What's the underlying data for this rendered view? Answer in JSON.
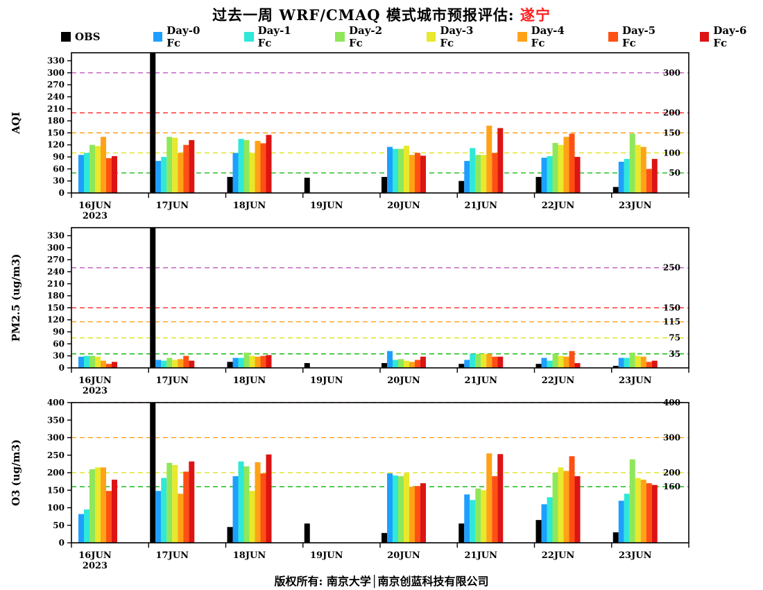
{
  "title": {
    "main": "过去一周 WRF/CMAQ 模式城市预报评估:",
    "city": " 遂宁"
  },
  "legend": {
    "items": [
      {
        "label": "OBS",
        "color": "#000000"
      },
      {
        "label": "Day-0 Fc",
        "color": "#1e9fff"
      },
      {
        "label": "Day-1 Fc",
        "color": "#2ee8d8"
      },
      {
        "label": "Day-2 Fc",
        "color": "#8fe75a"
      },
      {
        "label": "Day-3 Fc",
        "color": "#e8e82c"
      },
      {
        "label": "Day-4 Fc",
        "color": "#ffa217"
      },
      {
        "label": "Day-5 Fc",
        "color": "#ff5014"
      },
      {
        "label": "Day-6 Fc",
        "color": "#dc1414"
      }
    ]
  },
  "footer": {
    "text": "版权所有: 南京大学│南京创蓝科技有限公司"
  },
  "chart_data": [
    {
      "type": "bar",
      "ylabel": "AQI",
      "ylim": [
        0,
        350
      ],
      "yticks": [
        0,
        30,
        60,
        90,
        120,
        150,
        180,
        210,
        240,
        270,
        300,
        330
      ],
      "categories": [
        [
          "16JUN",
          "2023"
        ],
        [
          "17JUN"
        ],
        [
          "18JUN"
        ],
        [
          "19JUN"
        ],
        [
          "20JUN"
        ],
        [
          "21JUN"
        ],
        [
          "22JUN"
        ],
        [
          "23JUN"
        ]
      ],
      "series": [
        {
          "name": "OBS",
          "values": [
            0,
            350,
            40,
            38,
            40,
            30,
            40,
            15
          ]
        },
        {
          "name": "Day-0 Fc",
          "values": [
            95,
            80,
            100,
            null,
            115,
            80,
            88,
            78
          ]
        },
        {
          "name": "Day-1 Fc",
          "values": [
            100,
            90,
            135,
            null,
            110,
            112,
            92,
            85
          ]
        },
        {
          "name": "Day-2 Fc",
          "values": [
            120,
            140,
            132,
            null,
            110,
            95,
            125,
            148
          ]
        },
        {
          "name": "Day-3 Fc",
          "values": [
            117,
            138,
            100,
            null,
            118,
            95,
            120,
            120
          ]
        },
        {
          "name": "Day-4 Fc",
          "values": [
            140,
            100,
            130,
            null,
            95,
            168,
            140,
            115
          ]
        },
        {
          "name": "Day-5 Fc",
          "values": [
            87,
            120,
            124,
            null,
            100,
            100,
            148,
            60
          ]
        },
        {
          "name": "Day-6 Fc",
          "values": [
            92,
            132,
            145,
            null,
            93,
            162,
            90,
            85
          ]
        }
      ],
      "guides": [
        {
          "value": 50,
          "label": "50",
          "color": "#00b400"
        },
        {
          "value": 100,
          "label": "100",
          "color": "#dede00"
        },
        {
          "value": 150,
          "label": "150",
          "color": "#ff9900"
        },
        {
          "value": 200,
          "label": "200",
          "color": "#ff2222"
        },
        {
          "value": 300,
          "label": "300",
          "color": "#b847b8"
        }
      ]
    },
    {
      "type": "bar",
      "ylabel": "PM2.5 (ug/m3)",
      "ylim": [
        0,
        350
      ],
      "yticks": [
        0,
        30,
        60,
        90,
        120,
        150,
        180,
        210,
        240,
        270,
        300,
        330
      ],
      "categories": [
        [
          "16JUN",
          "2023"
        ],
        [
          "17JUN"
        ],
        [
          "18JUN"
        ],
        [
          "19JUN"
        ],
        [
          "20JUN"
        ],
        [
          "21JUN"
        ],
        [
          "22JUN"
        ],
        [
          "23JUN"
        ]
      ],
      "series": [
        {
          "name": "OBS",
          "values": [
            0,
            350,
            15,
            12,
            12,
            10,
            10,
            5
          ]
        },
        {
          "name": "Day-0 Fc",
          "values": [
            28,
            20,
            25,
            null,
            42,
            20,
            25,
            25
          ]
        },
        {
          "name": "Day-1 Fc",
          "values": [
            30,
            18,
            25,
            null,
            20,
            35,
            18,
            25
          ]
        },
        {
          "name": "Day-2 Fc",
          "values": [
            30,
            25,
            38,
            null,
            22,
            35,
            35,
            38
          ]
        },
        {
          "name": "Day-3 Fc",
          "values": [
            28,
            20,
            30,
            null,
            18,
            35,
            30,
            30
          ]
        },
        {
          "name": "Day-4 Fc",
          "values": [
            18,
            22,
            28,
            null,
            15,
            35,
            28,
            28
          ]
        },
        {
          "name": "Day-5 Fc",
          "values": [
            10,
            30,
            30,
            null,
            20,
            28,
            42,
            15
          ]
        },
        {
          "name": "Day-6 Fc",
          "values": [
            15,
            18,
            32,
            null,
            28,
            28,
            12,
            18
          ]
        }
      ],
      "guides": [
        {
          "value": 35,
          "label": "35",
          "color": "#00b400"
        },
        {
          "value": 75,
          "label": "75",
          "color": "#dede00"
        },
        {
          "value": 115,
          "label": "115",
          "color": "#ff9900"
        },
        {
          "value": 150,
          "label": "150",
          "color": "#ff2222"
        },
        {
          "value": 250,
          "label": "250",
          "color": "#b847b8"
        }
      ]
    },
    {
      "type": "bar",
      "ylabel": "O3 (ug/m3)",
      "ylim": [
        0,
        400
      ],
      "yticks": [
        0,
        50,
        100,
        150,
        200,
        250,
        300,
        350,
        400
      ],
      "categories": [
        [
          "16JUN",
          "2023"
        ],
        [
          "17JUN"
        ],
        [
          "18JUN"
        ],
        [
          "19JUN"
        ],
        [
          "20JUN"
        ],
        [
          "21JUN"
        ],
        [
          "22JUN"
        ],
        [
          "23JUN"
        ]
      ],
      "series": [
        {
          "name": "OBS",
          "values": [
            0,
            400,
            45,
            55,
            28,
            55,
            65,
            30
          ]
        },
        {
          "name": "Day-0 Fc",
          "values": [
            82,
            148,
            190,
            null,
            198,
            138,
            110,
            120
          ]
        },
        {
          "name": "Day-1 Fc",
          "values": [
            95,
            185,
            232,
            null,
            192,
            122,
            130,
            140
          ]
        },
        {
          "name": "Day-2 Fc",
          "values": [
            210,
            228,
            218,
            null,
            190,
            155,
            200,
            238
          ]
        },
        {
          "name": "Day-3 Fc",
          "values": [
            215,
            222,
            148,
            null,
            198,
            150,
            215,
            185
          ]
        },
        {
          "name": "Day-4 Fc",
          "values": [
            215,
            140,
            230,
            null,
            160,
            255,
            205,
            180
          ]
        },
        {
          "name": "Day-5 Fc",
          "values": [
            148,
            203,
            198,
            null,
            162,
            190,
            247,
            170
          ]
        },
        {
          "name": "Day-6 Fc",
          "values": [
            180,
            232,
            252,
            null,
            170,
            253,
            190,
            165
          ]
        }
      ],
      "guides": [
        {
          "value": 160,
          "label": "160",
          "color": "#00b400"
        },
        {
          "value": 200,
          "label": "200",
          "color": "#dede00"
        },
        {
          "value": 300,
          "label": "300",
          "color": "#ff9900"
        },
        {
          "value": 400,
          "label": "400",
          "color": "#ff2222"
        }
      ]
    }
  ]
}
